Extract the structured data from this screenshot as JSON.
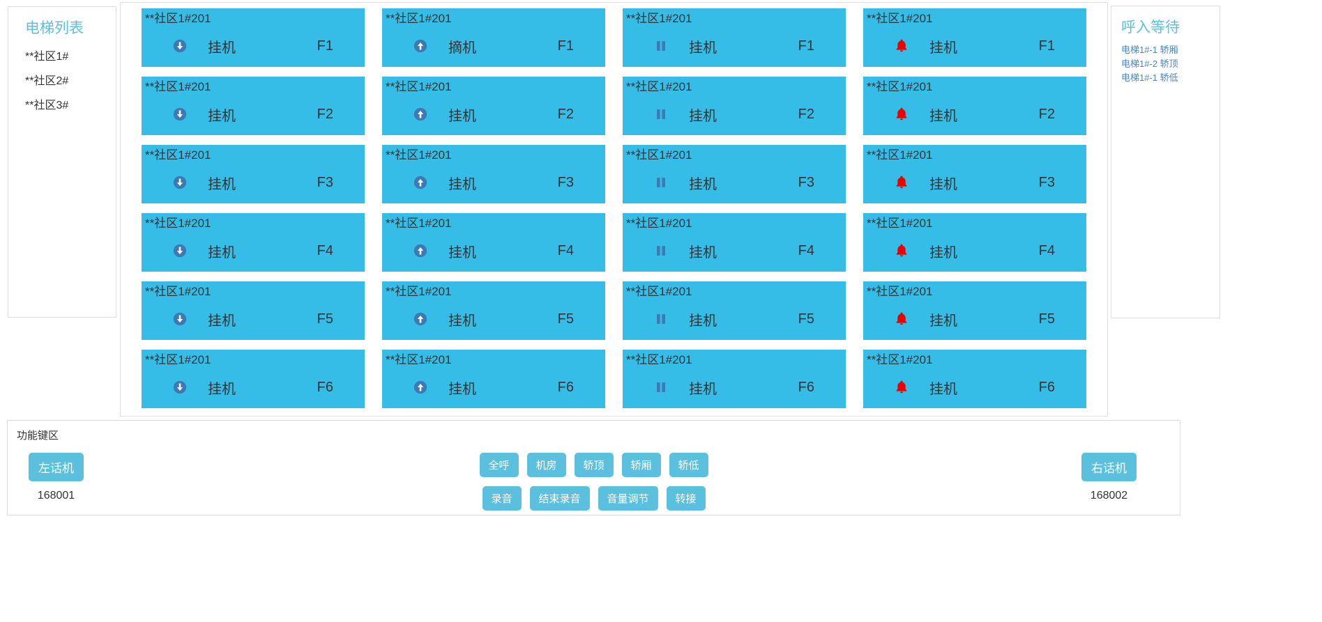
{
  "left_panel": {
    "title": "电梯列表",
    "items": [
      "**社区1#",
      "**社区2#",
      "**社区3#"
    ]
  },
  "grid": {
    "columns": [
      {
        "icon": "arrow-down-circle",
        "cards": [
          {
            "title": "**社区1#201",
            "status": "挂机",
            "floor": "F1"
          },
          {
            "title": "**社区1#201",
            "status": "挂机",
            "floor": "F2"
          },
          {
            "title": "**社区1#201",
            "status": "挂机",
            "floor": "F3"
          },
          {
            "title": "**社区1#201",
            "status": "挂机",
            "floor": "F4"
          },
          {
            "title": "**社区1#201",
            "status": "挂机",
            "floor": "F5"
          },
          {
            "title": "**社区1#201",
            "status": "挂机",
            "floor": "F6"
          }
        ]
      },
      {
        "icon": "arrow-up-circle",
        "cards": [
          {
            "title": "**社区1#201",
            "status": "摘机",
            "floor": "F1"
          },
          {
            "title": "**社区1#201",
            "status": "挂机",
            "floor": "F2"
          },
          {
            "title": "**社区1#201",
            "status": "挂机",
            "floor": "F3"
          },
          {
            "title": "**社区1#201",
            "status": "挂机",
            "floor": "F4"
          },
          {
            "title": "**社区1#201",
            "status": "挂机",
            "floor": "F5"
          },
          {
            "title": "**社区1#201",
            "status": "挂机",
            "floor": "F6"
          }
        ]
      },
      {
        "icon": "pause",
        "cards": [
          {
            "title": "**社区1#201",
            "status": "挂机",
            "floor": "F1"
          },
          {
            "title": "**社区1#201",
            "status": "挂机",
            "floor": "F2"
          },
          {
            "title": "**社区1#201",
            "status": "挂机",
            "floor": "F3"
          },
          {
            "title": "**社区1#201",
            "status": "挂机",
            "floor": "F4"
          },
          {
            "title": "**社区1#201",
            "status": "挂机",
            "floor": "F5"
          },
          {
            "title": "**社区1#201",
            "status": "挂机",
            "floor": "F6"
          }
        ]
      },
      {
        "icon": "bell",
        "cards": [
          {
            "title": "**社区1#201",
            "status": "挂机",
            "floor": "F1"
          },
          {
            "title": "**社区1#201",
            "status": "挂机",
            "floor": "F2"
          },
          {
            "title": "**社区1#201",
            "status": "挂机",
            "floor": "F3"
          },
          {
            "title": "**社区1#201",
            "status": "挂机",
            "floor": "F4"
          },
          {
            "title": "**社区1#201",
            "status": "挂机",
            "floor": "F5"
          },
          {
            "title": "**社区1#201",
            "status": "挂机",
            "floor": "F6"
          }
        ]
      }
    ]
  },
  "right_panel": {
    "title": "呼入等待",
    "items": [
      "电梯1#-1 轿厢",
      "电梯1#-2 轿顶",
      "电梯1#-1 轿低"
    ]
  },
  "function_panel": {
    "label": "功能键区",
    "left_phone": {
      "label": "左话机",
      "number": "168001"
    },
    "right_phone": {
      "label": "右话机",
      "number": "168002"
    },
    "row1": [
      "全呼",
      "机房",
      "轿顶",
      "轿厢",
      "轿低"
    ],
    "row2": [
      "录音",
      "结束录音",
      "音量调节",
      "转接"
    ]
  },
  "colors": {
    "card_bg": "#35bde8",
    "heading_accent": "#5bc0de",
    "button_bg": "#5bc0de",
    "icon_blue": "#3d7ab3",
    "bell_red": "#ee0000",
    "link_blue": "#4a86c8",
    "text_dark": "#333333",
    "border": "#dddddd"
  }
}
